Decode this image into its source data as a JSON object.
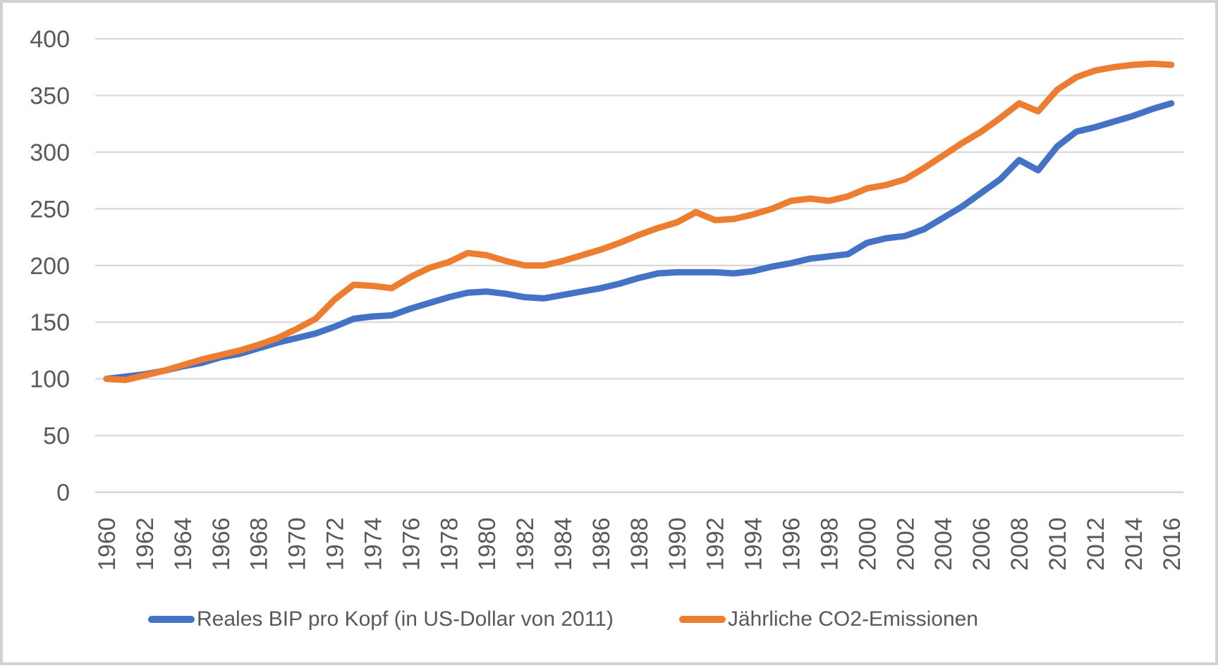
{
  "chart_data": {
    "type": "line",
    "title": "",
    "xlabel": "",
    "ylabel": "",
    "grid": true,
    "legend_position": "bottom",
    "ylim": [
      0,
      400
    ],
    "y_ticks": [
      0,
      50,
      100,
      150,
      200,
      250,
      300,
      350,
      400
    ],
    "x_ticks": [
      1960,
      1962,
      1964,
      1966,
      1968,
      1970,
      1972,
      1974,
      1976,
      1978,
      1980,
      1982,
      1984,
      1986,
      1988,
      1990,
      1992,
      1994,
      1996,
      1998,
      2000,
      2002,
      2004,
      2006,
      2008,
      2010,
      2012,
      2014,
      2016
    ],
    "x": [
      1960,
      1961,
      1962,
      1963,
      1964,
      1965,
      1966,
      1967,
      1968,
      1969,
      1970,
      1971,
      1972,
      1973,
      1974,
      1975,
      1976,
      1977,
      1978,
      1979,
      1980,
      1981,
      1982,
      1983,
      1984,
      1985,
      1986,
      1987,
      1988,
      1989,
      1990,
      1991,
      1992,
      1993,
      1994,
      1995,
      1996,
      1997,
      1998,
      1999,
      2000,
      2001,
      2002,
      2003,
      2004,
      2005,
      2006,
      2007,
      2008,
      2009,
      2010,
      2011,
      2012,
      2013,
      2014,
      2015,
      2016
    ],
    "series": [
      {
        "name": "Reales BIP pro Kopf (in US-Dollar von 2011)",
        "color": "#4472C4",
        "values": [
          100,
          102,
          104,
          107,
          111,
          114,
          119,
          122,
          127,
          132,
          136,
          140,
          146,
          153,
          155,
          156,
          162,
          167,
          172,
          176,
          177,
          175,
          172,
          171,
          174,
          177,
          180,
          184,
          189,
          193,
          194,
          194,
          194,
          193,
          195,
          199,
          202,
          206,
          208,
          210,
          220,
          224,
          226,
          232,
          242,
          252,
          264,
          276,
          293,
          284,
          305,
          318,
          322,
          327,
          332,
          338,
          343
        ]
      },
      {
        "name": "Jährliche CO2-Emissionen",
        "color": "#ED7D31",
        "values": [
          100,
          99,
          103,
          107,
          112,
          117,
          121,
          125,
          130,
          136,
          144,
          153,
          170,
          183,
          182,
          180,
          190,
          198,
          203,
          211,
          209,
          204,
          200,
          200,
          204,
          209,
          214,
          220,
          227,
          233,
          238,
          247,
          240,
          241,
          245,
          250,
          257,
          259,
          257,
          261,
          268,
          271,
          276,
          286,
          297,
          308,
          318,
          330,
          343,
          336,
          355,
          366,
          372,
          375,
          377,
          378,
          377
        ]
      }
    ]
  },
  "style": {
    "gridline_color": "#D9D9D9",
    "axis_line_color": "#D0D0D0",
    "tick_label_color": "#595959",
    "background_color": "#FFFFFF",
    "border_color": "#D2D2D2"
  }
}
